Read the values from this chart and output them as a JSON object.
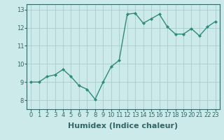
{
  "x": [
    0,
    1,
    2,
    3,
    4,
    5,
    6,
    7,
    8,
    9,
    10,
    11,
    12,
    13,
    14,
    15,
    16,
    17,
    18,
    19,
    20,
    21,
    22,
    23
  ],
  "y": [
    9.0,
    9.0,
    9.3,
    9.4,
    9.7,
    9.3,
    8.8,
    8.6,
    8.05,
    9.0,
    9.85,
    10.2,
    12.75,
    12.8,
    12.25,
    12.5,
    12.75,
    12.05,
    11.65,
    11.65,
    11.95,
    11.55,
    12.05,
    12.35
  ],
  "line_color": "#2e8b7a",
  "marker": "D",
  "marker_size": 2,
  "bg_color": "#cceaea",
  "grid_color": "#aacccc",
  "xlabel": "Humidex (Indice chaleur)",
  "xlabel_fontsize": 8,
  "yticks": [
    8,
    9,
    10,
    11,
    12,
    13
  ],
  "xticks": [
    0,
    1,
    2,
    3,
    4,
    5,
    6,
    7,
    8,
    9,
    10,
    11,
    12,
    13,
    14,
    15,
    16,
    17,
    18,
    19,
    20,
    21,
    22,
    23
  ],
  "ylim": [
    7.5,
    13.3
  ],
  "xlim": [
    -0.5,
    23.5
  ],
  "tick_label_fontsize": 6,
  "line_width": 1.0,
  "spine_color": "#336666"
}
